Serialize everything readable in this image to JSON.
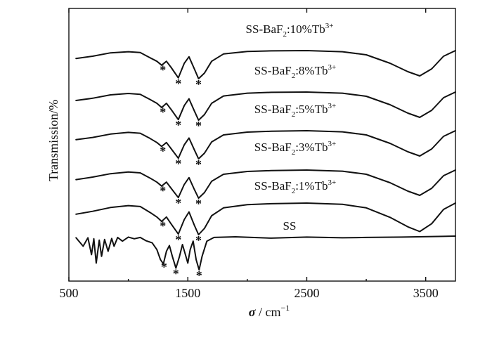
{
  "chart_data": {
    "type": "line",
    "xlabel": {
      "symbol": "σ",
      "text": " / cm",
      "sup": "−1"
    },
    "ylabel": "Transmission/%",
    "xlim": [
      500,
      3750
    ],
    "xticks": [
      500,
      1500,
      2500,
      3500
    ],
    "xtick_labels": [
      "500",
      "1500",
      "2500",
      "3500"
    ],
    "yticks": "none",
    "grid": false,
    "legend": "none (curve labels placed above each trace)",
    "marker_symbol": "*",
    "series": [
      {
        "name": "SS-BaF₂:10%Tb³⁺",
        "label_parts": [
          "SS-BaF",
          "2",
          ":10%Tb",
          "3+"
        ],
        "points": [
          [
            560,
            0.72
          ],
          [
            700,
            0.8
          ],
          [
            850,
            0.92
          ],
          [
            1000,
            0.96
          ],
          [
            1100,
            0.93
          ],
          [
            1180,
            0.75
          ],
          [
            1240,
            0.62
          ],
          [
            1280,
            0.48
          ],
          [
            1320,
            0.62
          ],
          [
            1360,
            0.4
          ],
          [
            1420,
            0.03
          ],
          [
            1470,
            0.55
          ],
          [
            1510,
            0.78
          ],
          [
            1555,
            0.35
          ],
          [
            1590,
            0.0
          ],
          [
            1640,
            0.2
          ],
          [
            1700,
            0.62
          ],
          [
            1800,
            0.88
          ],
          [
            2000,
            0.97
          ],
          [
            2200,
            0.99
          ],
          [
            2500,
            1.0
          ],
          [
            2800,
            0.96
          ],
          [
            3000,
            0.85
          ],
          [
            3200,
            0.55
          ],
          [
            3350,
            0.25
          ],
          [
            3450,
            0.1
          ],
          [
            3550,
            0.35
          ],
          [
            3650,
            0.8
          ],
          [
            3750,
            1.0
          ]
        ],
        "markers": [
          [
            1290,
            "low"
          ],
          [
            1420,
            "low"
          ],
          [
            1590,
            "low"
          ]
        ]
      },
      {
        "name": "SS-BaF₂:8%Tb³⁺",
        "label_parts": [
          "SS-BaF",
          "2",
          ":8%Tb",
          "3+"
        ],
        "points": [
          [
            560,
            0.7
          ],
          [
            700,
            0.78
          ],
          [
            850,
            0.9
          ],
          [
            1000,
            0.95
          ],
          [
            1100,
            0.92
          ],
          [
            1180,
            0.74
          ],
          [
            1240,
            0.6
          ],
          [
            1280,
            0.45
          ],
          [
            1320,
            0.6
          ],
          [
            1360,
            0.38
          ],
          [
            1420,
            0.02
          ],
          [
            1470,
            0.52
          ],
          [
            1510,
            0.76
          ],
          [
            1555,
            0.33
          ],
          [
            1590,
            0.0
          ],
          [
            1640,
            0.2
          ],
          [
            1700,
            0.6
          ],
          [
            1800,
            0.86
          ],
          [
            2000,
            0.96
          ],
          [
            2200,
            0.99
          ],
          [
            2500,
            1.0
          ],
          [
            2800,
            0.96
          ],
          [
            3000,
            0.85
          ],
          [
            3200,
            0.55
          ],
          [
            3350,
            0.25
          ],
          [
            3450,
            0.1
          ],
          [
            3550,
            0.35
          ],
          [
            3650,
            0.8
          ],
          [
            3750,
            1.0
          ]
        ],
        "markers": [
          [
            1290,
            "low"
          ],
          [
            1420,
            "low"
          ],
          [
            1590,
            "low"
          ]
        ]
      },
      {
        "name": "SS-BaF₂:5%Tb³⁺",
        "label_parts": [
          "SS-BaF",
          "2",
          ":5%Tb",
          "3+"
        ],
        "points": [
          [
            560,
            0.68
          ],
          [
            700,
            0.76
          ],
          [
            850,
            0.88
          ],
          [
            1000,
            0.94
          ],
          [
            1100,
            0.91
          ],
          [
            1180,
            0.73
          ],
          [
            1240,
            0.58
          ],
          [
            1280,
            0.44
          ],
          [
            1320,
            0.58
          ],
          [
            1360,
            0.36
          ],
          [
            1420,
            0.02
          ],
          [
            1470,
            0.5
          ],
          [
            1510,
            0.74
          ],
          [
            1555,
            0.32
          ],
          [
            1590,
            0.0
          ],
          [
            1640,
            0.2
          ],
          [
            1700,
            0.6
          ],
          [
            1800,
            0.85
          ],
          [
            2000,
            0.95
          ],
          [
            2200,
            0.98
          ],
          [
            2500,
            1.0
          ],
          [
            2800,
            0.96
          ],
          [
            3000,
            0.85
          ],
          [
            3200,
            0.55
          ],
          [
            3350,
            0.25
          ],
          [
            3450,
            0.1
          ],
          [
            3550,
            0.35
          ],
          [
            3650,
            0.8
          ],
          [
            3750,
            1.0
          ]
        ],
        "markers": [
          [
            1290,
            "low"
          ],
          [
            1420,
            "low"
          ],
          [
            1590,
            "low"
          ]
        ]
      },
      {
        "name": "SS-BaF₂:3%Tb³⁺",
        "label_parts": [
          "SS-BaF",
          "2",
          ":3%Tb",
          "3+"
        ],
        "points": [
          [
            560,
            0.66
          ],
          [
            700,
            0.75
          ],
          [
            850,
            0.87
          ],
          [
            1000,
            0.93
          ],
          [
            1100,
            0.9
          ],
          [
            1180,
            0.72
          ],
          [
            1240,
            0.57
          ],
          [
            1280,
            0.43
          ],
          [
            1320,
            0.57
          ],
          [
            1360,
            0.35
          ],
          [
            1420,
            0.02
          ],
          [
            1470,
            0.49
          ],
          [
            1510,
            0.73
          ],
          [
            1555,
            0.31
          ],
          [
            1590,
            0.0
          ],
          [
            1640,
            0.2
          ],
          [
            1700,
            0.6
          ],
          [
            1800,
            0.85
          ],
          [
            2000,
            0.95
          ],
          [
            2200,
            0.98
          ],
          [
            2500,
            1.0
          ],
          [
            2800,
            0.96
          ],
          [
            3000,
            0.85
          ],
          [
            3200,
            0.55
          ],
          [
            3350,
            0.25
          ],
          [
            3450,
            0.1
          ],
          [
            3550,
            0.35
          ],
          [
            3650,
            0.8
          ],
          [
            3750,
            1.0
          ]
        ],
        "markers": [
          [
            1290,
            "low"
          ],
          [
            1420,
            "low"
          ],
          [
            1590,
            "low"
          ]
        ]
      },
      {
        "name": "SS-BaF₂:1%Tb³⁺",
        "label_parts": [
          "SS-BaF",
          "2",
          ":1%Tb",
          "3+"
        ],
        "points": [
          [
            560,
            0.65
          ],
          [
            700,
            0.74
          ],
          [
            850,
            0.86
          ],
          [
            1000,
            0.92
          ],
          [
            1100,
            0.89
          ],
          [
            1180,
            0.71
          ],
          [
            1240,
            0.56
          ],
          [
            1280,
            0.42
          ],
          [
            1320,
            0.56
          ],
          [
            1360,
            0.34
          ],
          [
            1420,
            0.02
          ],
          [
            1470,
            0.48
          ],
          [
            1510,
            0.72
          ],
          [
            1555,
            0.3
          ],
          [
            1590,
            0.0
          ],
          [
            1640,
            0.2
          ],
          [
            1700,
            0.6
          ],
          [
            1800,
            0.85
          ],
          [
            2000,
            0.95
          ],
          [
            2200,
            0.98
          ],
          [
            2500,
            1.0
          ],
          [
            2800,
            0.96
          ],
          [
            3000,
            0.85
          ],
          [
            3200,
            0.55
          ],
          [
            3350,
            0.25
          ],
          [
            3450,
            0.1
          ],
          [
            3550,
            0.35
          ],
          [
            3650,
            0.8
          ],
          [
            3750,
            1.0
          ]
        ],
        "markers": [
          [
            1290,
            "low"
          ],
          [
            1420,
            "low"
          ],
          [
            1590,
            "low"
          ]
        ]
      },
      {
        "name": "SS",
        "label_parts": [
          "SS",
          "",
          "",
          ""
        ],
        "points": [
          [
            560,
            0.95
          ],
          [
            620,
            0.7
          ],
          [
            660,
            0.95
          ],
          [
            690,
            0.45
          ],
          [
            710,
            0.92
          ],
          [
            730,
            0.2
          ],
          [
            755,
            0.88
          ],
          [
            775,
            0.4
          ],
          [
            800,
            0.9
          ],
          [
            830,
            0.55
          ],
          [
            860,
            0.93
          ],
          [
            880,
            0.7
          ],
          [
            910,
            0.96
          ],
          [
            950,
            0.85
          ],
          [
            1000,
            0.97
          ],
          [
            1050,
            0.92
          ],
          [
            1100,
            0.96
          ],
          [
            1150,
            0.86
          ],
          [
            1200,
            0.8
          ],
          [
            1240,
            0.6
          ],
          [
            1270,
            0.3
          ],
          [
            1295,
            0.18
          ],
          [
            1320,
            0.55
          ],
          [
            1345,
            0.72
          ],
          [
            1370,
            0.4
          ],
          [
            1400,
            0.05
          ],
          [
            1430,
            0.4
          ],
          [
            1455,
            0.75
          ],
          [
            1480,
            0.45
          ],
          [
            1500,
            0.2
          ],
          [
            1520,
            0.6
          ],
          [
            1545,
            0.85
          ],
          [
            1570,
            0.3
          ],
          [
            1595,
            0.0
          ],
          [
            1620,
            0.4
          ],
          [
            1660,
            0.85
          ],
          [
            1720,
            0.96
          ],
          [
            1900,
            0.98
          ],
          [
            2200,
            0.94
          ],
          [
            2500,
            0.97
          ],
          [
            2800,
            0.95
          ],
          [
            3000,
            0.96
          ],
          [
            3300,
            0.97
          ],
          [
            3600,
            0.99
          ],
          [
            3750,
            1.0
          ]
        ],
        "markers": [
          [
            1300,
            "low"
          ],
          [
            1400,
            "low"
          ],
          [
            1595,
            "low"
          ]
        ]
      }
    ]
  }
}
